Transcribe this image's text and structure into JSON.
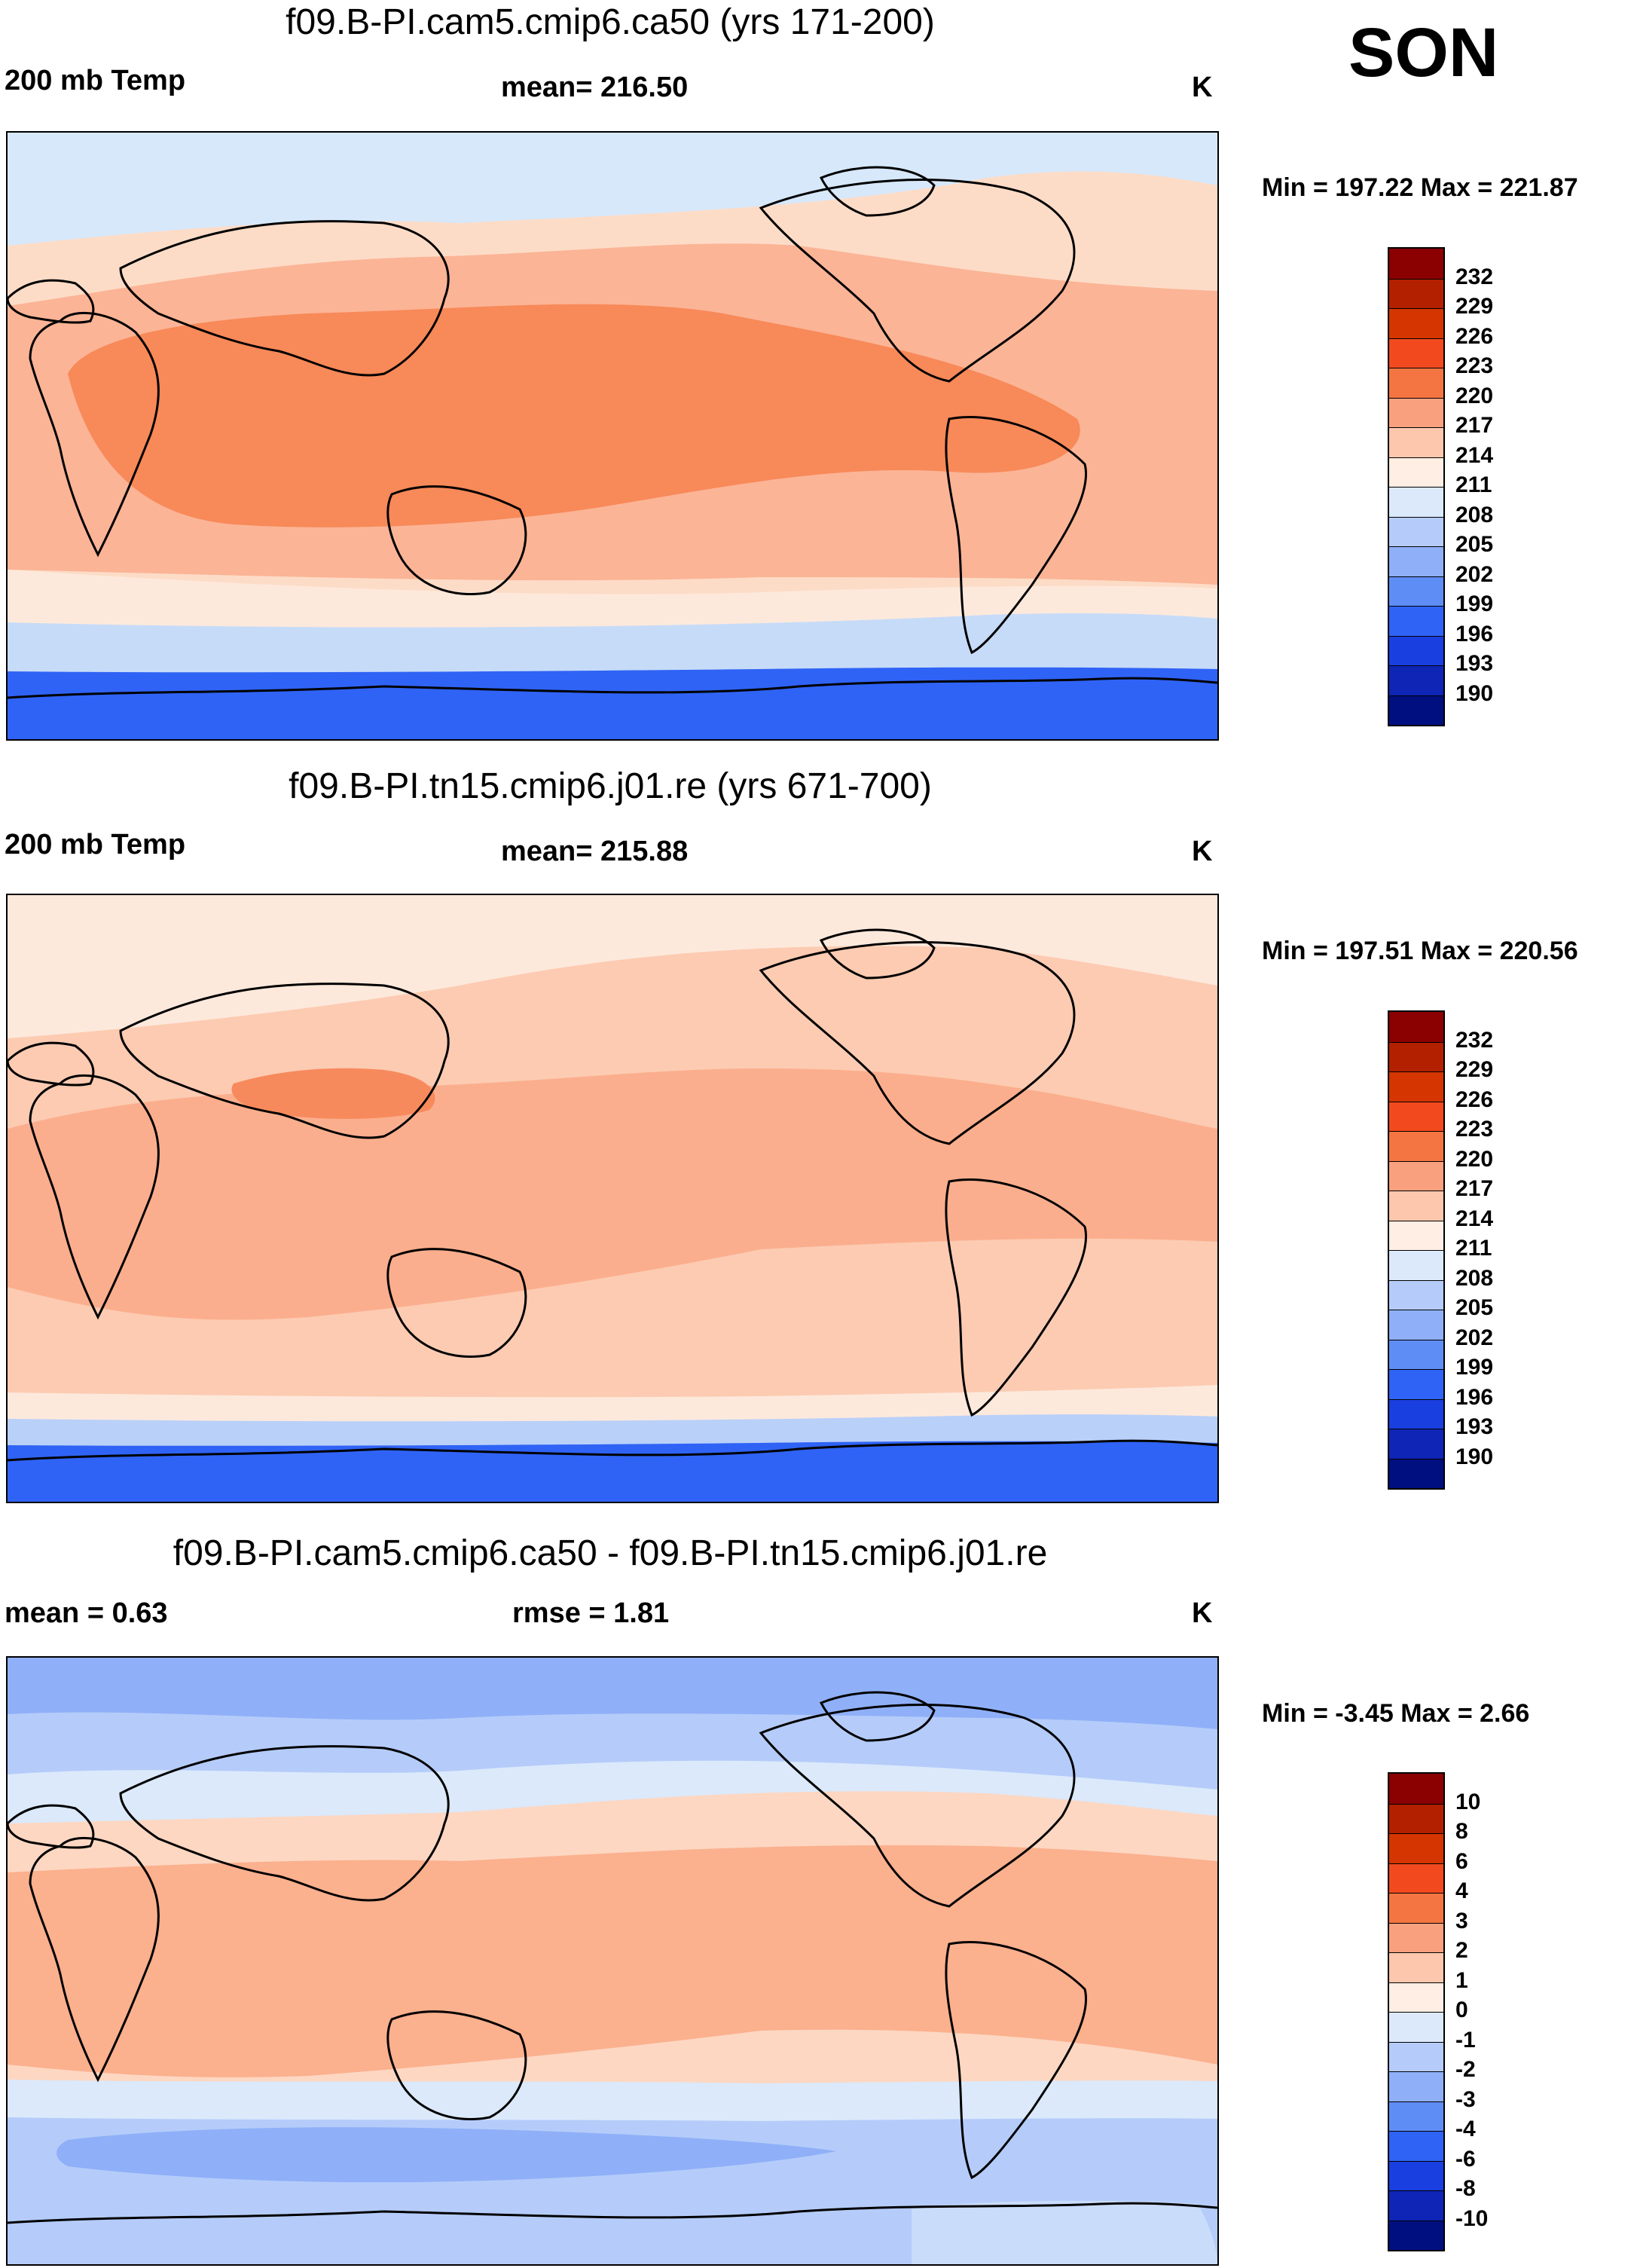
{
  "season": "SON",
  "units": "K",
  "land_color": "#000000",
  "panels": [
    {
      "title": "f09.B-PI.cam5.cmip6.ca50 (yrs 171-200)",
      "left_label": "200 mb Temp",
      "center_label": "mean= 216.50",
      "units": "K",
      "minmax": "Min = 197.22 Max = 221.87",
      "fields": [
        {
          "field": "upper-arctic",
          "color": "#d7e8fb"
        },
        {
          "field": "midlat-warm",
          "color": "#fddcc7"
        },
        {
          "field": "subtrop-band",
          "color": "#fbb496"
        },
        {
          "field": "tropical-core",
          "color": "#f88959"
        },
        {
          "field": "southern-ocean",
          "color": "#fde9dc"
        },
        {
          "field": "antarctic-ring",
          "color": "#c6dbf8"
        },
        {
          "field": "antarctic",
          "color": "#2f63f5"
        }
      ],
      "legend": {
        "labels": [
          "232",
          "229",
          "226",
          "223",
          "220",
          "217",
          "214",
          "211",
          "208",
          "205",
          "202",
          "199",
          "196",
          "193",
          "190"
        ],
        "colors": [
          "#8b0000",
          "#b22000",
          "#d53500",
          "#f24a1e",
          "#f57542",
          "#f9a07e",
          "#fcc7ad",
          "#feeee3",
          "#dbe9fb",
          "#b5ccfa",
          "#8fb0f8",
          "#5f8df6",
          "#2f63f5",
          "#1a3fe0",
          "#0e25b6",
          "#000f80"
        ]
      }
    },
    {
      "title": "f09.B-PI.tn15.cmip6.j01.re (yrs 671-700)",
      "left_label": "200 mb Temp",
      "center_label": "mean= 215.88",
      "units": "K",
      "minmax": "Min = 197.51 Max = 220.56",
      "fields": [
        {
          "field": "arctic",
          "color": "#fde9dc"
        },
        {
          "field": "midlat-warm",
          "color": "#fccbb2"
        },
        {
          "field": "tropics",
          "color": "#fbae8d"
        },
        {
          "field": "tibet-hot",
          "color": "#f78a5c"
        },
        {
          "field": "southern-ocean",
          "color": "#fde9dc"
        },
        {
          "field": "antarctic-ring",
          "color": "#b9d0f9"
        },
        {
          "field": "antarctic",
          "color": "#2f63f5"
        }
      ],
      "legend": {
        "labels": [
          "232",
          "229",
          "226",
          "223",
          "220",
          "217",
          "214",
          "211",
          "208",
          "205",
          "202",
          "199",
          "196",
          "193",
          "190"
        ],
        "colors": [
          "#8b0000",
          "#b22000",
          "#d53500",
          "#f24a1e",
          "#f57542",
          "#f9a07e",
          "#fcc7ad",
          "#feeee3",
          "#dbe9fb",
          "#b5ccfa",
          "#8fb0f8",
          "#5f8df6",
          "#2f63f5",
          "#1a3fe0",
          "#0e25b6",
          "#000f80"
        ]
      }
    },
    {
      "title": "f09.B-PI.cam5.cmip6.ca50 - f09.B-PI.tn15.cmip6.j01.re",
      "left_label": "mean =   0.63",
      "center_label": "rmse =   1.81",
      "units": "K",
      "minmax": "Min =  -3.45 Max =   2.66",
      "fields": [
        {
          "field": "arctic",
          "color": "#8fb0f8"
        },
        {
          "field": "highlat",
          "color": "#b5ccfa"
        },
        {
          "field": "midlat",
          "color": "#dbe9fb"
        },
        {
          "field": "subtropics",
          "color": "#fdd7c2"
        },
        {
          "field": "tropics",
          "color": "#fbb08e"
        },
        {
          "field": "southern-mid",
          "color": "#dbe9fb"
        },
        {
          "field": "southern-ocean",
          "color": "#b5ccfa"
        },
        {
          "field": "southern-core",
          "color": "#8fb0f8"
        },
        {
          "field": "antarctic",
          "color": "#c9dcfa"
        }
      ],
      "legend": {
        "labels": [
          "10",
          "8",
          "6",
          "4",
          "3",
          "2",
          "1",
          "0",
          "-1",
          "-2",
          "-3",
          "-4",
          "-6",
          "-8",
          "-10"
        ],
        "colors": [
          "#8b0000",
          "#b22000",
          "#d53500",
          "#f24a1e",
          "#f57542",
          "#f9a07e",
          "#fcc7ad",
          "#feeee3",
          "#dbe9fb",
          "#b5ccfa",
          "#8fb0f8",
          "#5f8df6",
          "#2f63f5",
          "#1a3fe0",
          "#0e25b6",
          "#000f80"
        ]
      }
    }
  ]
}
